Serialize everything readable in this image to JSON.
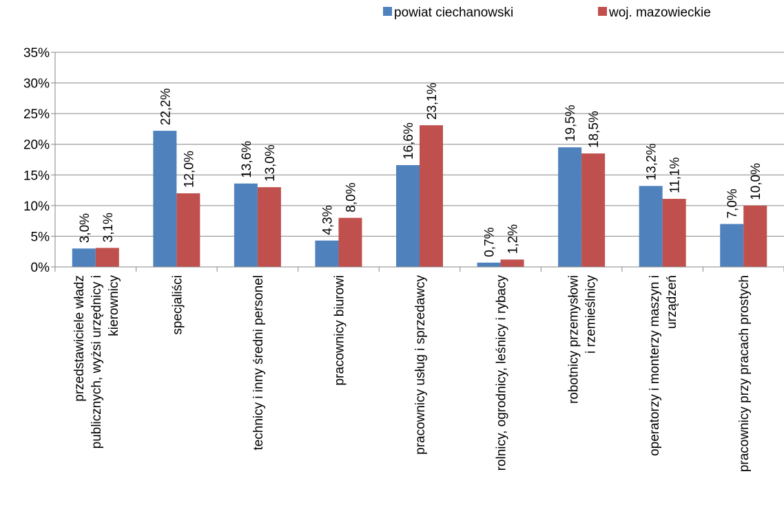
{
  "chart_data": {
    "type": "bar",
    "categories": [
      [
        "przedstawiciele władz",
        "publicznych, wyżsi urzędnicy i",
        "kierownicy"
      ],
      [
        "specjaliści"
      ],
      [
        "technicy i inny średni personel"
      ],
      [
        "pracownicy biurowi"
      ],
      [
        "pracownicy usług i sprzedawcy"
      ],
      [
        "rolnicy, ogrodnicy, leśnicy i rybacy"
      ],
      [
        "robotnicy przemysłowi",
        "i rzemieślnicy"
      ],
      [
        "operatorzy i monterzy maszyn i",
        "urządzeń"
      ],
      [
        "pracownicy przy pracach prostych"
      ]
    ],
    "series": [
      {
        "name": "powiat ciechanowski",
        "color": "#4F81BD",
        "values": [
          3.0,
          22.2,
          13.6,
          4.3,
          16.6,
          0.7,
          19.5,
          13.2,
          7.0
        ],
        "labels": [
          "3,0%",
          "22,2%",
          "13,6%",
          "4,3%",
          "16,6%",
          "0,7%",
          "19,5%",
          "13,2%",
          "7,0%"
        ]
      },
      {
        "name": "woj. mazowieckie",
        "color": "#C0504D",
        "values": [
          3.1,
          12.0,
          13.0,
          8.0,
          23.1,
          1.2,
          18.5,
          11.1,
          10.0
        ],
        "labels": [
          "3,1%",
          "12,0%",
          "13,0%",
          "8,0%",
          "23,1%",
          "1,2%",
          "18,5%",
          "11,1%",
          "10,0%"
        ]
      }
    ],
    "ylim": [
      0,
      35
    ],
    "yticks": [
      0,
      5,
      10,
      15,
      20,
      25,
      30,
      35
    ],
    "ytick_labels": [
      "0%",
      "5%",
      "10%",
      "15%",
      "20%",
      "25%",
      "30%",
      "35%"
    ],
    "grid": true,
    "legend_position": "top-right",
    "title": "",
    "xlabel": "",
    "ylabel": ""
  }
}
